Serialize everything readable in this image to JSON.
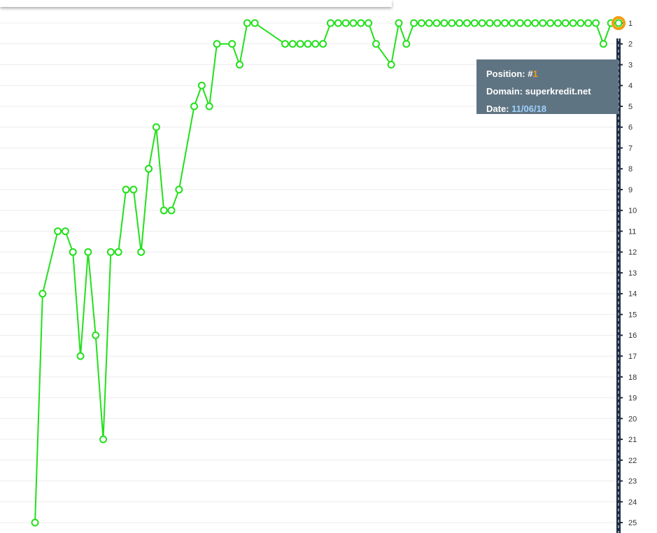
{
  "chart_data": {
    "type": "line",
    "x": [
      0,
      1,
      3,
      4,
      5,
      6,
      7,
      8,
      9,
      10,
      11,
      12,
      13,
      14,
      15,
      16,
      17,
      18,
      19,
      21,
      22,
      23,
      24,
      26,
      27,
      28,
      29,
      33,
      34,
      35,
      36,
      37,
      38,
      39,
      40,
      41,
      42,
      43,
      44,
      45,
      47,
      48,
      49,
      50,
      51,
      52,
      53,
      54,
      55,
      56,
      57,
      58,
      59,
      60,
      61,
      62,
      63,
      64,
      65,
      66,
      67,
      68,
      69,
      70,
      71,
      72,
      73,
      74,
      75,
      76,
      77
    ],
    "series": [
      {
        "name": "superkredit.net",
        "color": "#22e01a",
        "values": [
          25,
          14,
          11,
          11,
          12,
          17,
          12,
          16,
          21,
          12,
          12,
          9,
          9,
          12,
          8,
          6,
          10,
          10,
          9,
          5,
          4,
          5,
          2,
          2,
          3,
          1,
          1,
          2,
          2,
          2,
          2,
          2,
          2,
          1,
          1,
          1,
          1,
          1,
          1,
          2,
          3,
          1,
          2,
          1,
          1,
          1,
          1,
          1,
          1,
          1,
          1,
          1,
          1,
          1,
          1,
          1,
          1,
          1,
          1,
          1,
          1,
          1,
          1,
          1,
          1,
          1,
          1,
          1,
          2,
          1,
          1
        ]
      }
    ],
    "xlim": [
      -4.62,
      82.07
    ],
    "ylim": [
      25.5,
      -0.11
    ],
    "yticks": [
      1,
      2,
      3,
      4,
      5,
      6,
      7,
      8,
      9,
      10,
      11,
      12,
      13,
      14,
      15,
      16,
      17,
      18,
      19,
      20,
      21,
      22,
      23,
      24,
      25
    ],
    "grid": true,
    "highlight_color": "#f39c12"
  },
  "tooltip": {
    "position_label": "Position: #",
    "position_value": "1",
    "domain_label": "Domain: superkredit.net",
    "date_label": "Date:",
    "date_value": "11/06/18"
  }
}
